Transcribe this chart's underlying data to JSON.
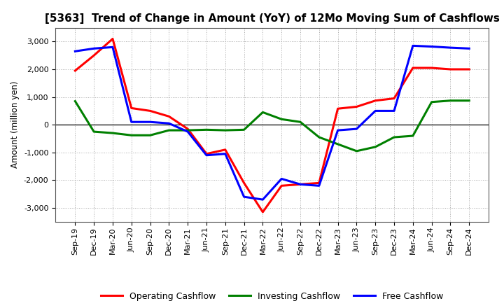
{
  "title": "[5363]  Trend of Change in Amount (YoY) of 12Mo Moving Sum of Cashflows",
  "ylabel": "Amount (million yen)",
  "labels": [
    "Sep-19",
    "Dec-19",
    "Mar-20",
    "Jun-20",
    "Sep-20",
    "Dec-20",
    "Mar-21",
    "Jun-21",
    "Sep-21",
    "Dec-21",
    "Mar-22",
    "Jun-22",
    "Sep-22",
    "Dec-22",
    "Mar-23",
    "Jun-23",
    "Sep-23",
    "Dec-23",
    "Mar-24",
    "Jun-24",
    "Sep-24",
    "Dec-24"
  ],
  "operating": [
    1950,
    2500,
    3100,
    600,
    500,
    300,
    -150,
    -1050,
    -900,
    -2100,
    -3150,
    -2200,
    -2150,
    -2100,
    580,
    650,
    870,
    950,
    2050,
    2050,
    2000,
    2000
  ],
  "investing": [
    850,
    -250,
    -300,
    -380,
    -380,
    -200,
    -200,
    -180,
    -200,
    -180,
    450,
    200,
    100,
    -450,
    -700,
    -950,
    -800,
    -450,
    -400,
    820,
    870,
    870
  ],
  "free": [
    2650,
    2750,
    2800,
    100,
    100,
    50,
    -250,
    -1100,
    -1050,
    -2600,
    -2700,
    -1950,
    -2150,
    -2200,
    -200,
    -150,
    500,
    500,
    2850,
    2820,
    2780,
    2750
  ],
  "operating_color": "#ff0000",
  "investing_color": "#008000",
  "free_color": "#0000ff",
  "bg_color": "#ffffff",
  "grid_color": "#aaaaaa",
  "ylim": [
    -3500,
    3500
  ],
  "yticks": [
    -3000,
    -2000,
    -1000,
    0,
    1000,
    2000,
    3000
  ],
  "line_width": 2.2,
  "title_fontsize": 11,
  "label_fontsize": 8.5,
  "tick_fontsize": 8,
  "legend_fontsize": 9
}
